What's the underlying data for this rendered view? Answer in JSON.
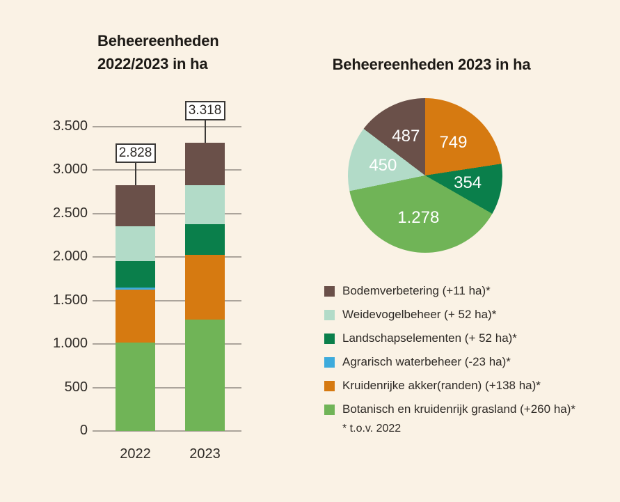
{
  "background_color": "#faf2e5",
  "accent_text_color": "#1d1a16",
  "grid_color": "#aba49b",
  "chart_data": [
    {
      "type": "bar",
      "subtype": "stacked-column",
      "title_lines": [
        "Beheereenheden",
        "2022/2023 in ha"
      ],
      "categories": [
        "2022",
        "2023"
      ],
      "series": [
        {
          "name": "Botanisch en kruidenrijk grasland",
          "color": "#70b457",
          "values": [
            1018,
            1278
          ]
        },
        {
          "name": "Kruidenrijke akker(randen)",
          "color": "#d67a11",
          "values": [
            611,
            749
          ]
        },
        {
          "name": "Agrarisch waterbeheer",
          "color": "#3dabdc",
          "values": [
            23,
            0
          ]
        },
        {
          "name": "Landschapselementen",
          "color": "#0a7f4b",
          "values": [
            302,
            354
          ]
        },
        {
          "name": "Weidevogelbeheer",
          "color": "#b2dbc8",
          "values": [
            398,
            450
          ]
        },
        {
          "name": "Bodemverbetering",
          "color": "#6a5049",
          "values": [
            476,
            487
          ]
        }
      ],
      "totals": [
        2828,
        3318
      ],
      "total_labels": [
        "2.828",
        "3.318"
      ],
      "ylim": [
        0,
        3500
      ],
      "ytick_step": 500,
      "ytick_labels": [
        "0",
        "500",
        "1.000",
        "1.500",
        "2.000",
        "2.500",
        "3.000",
        "3.500"
      ],
      "grid": true
    },
    {
      "type": "pie",
      "title": "Beheereenheden 2023 in ha",
      "start_angle_deg": 0,
      "direction": "clockwise",
      "slices": [
        {
          "name": "Kruidenrijke akker(randen)",
          "value": 749,
          "label": "749",
          "color": "#d67a11"
        },
        {
          "name": "Landschapselementen",
          "value": 354,
          "label": "354",
          "color": "#0a7f4b"
        },
        {
          "name": "Botanisch en kruidenrijk grasland",
          "value": 1278,
          "label": "1.278",
          "color": "#70b457"
        },
        {
          "name": "Weidevogelbeheer",
          "value": 450,
          "label": "450",
          "color": "#b2dbc8"
        },
        {
          "name": "Bodemverbetering",
          "value": 487,
          "label": "487",
          "color": "#6a5049"
        }
      ]
    }
  ],
  "legend": {
    "items": [
      {
        "label": "Bodemverbetering (+11 ha)*",
        "color": "#6a5049"
      },
      {
        "label": "Weidevogelbeheer (+ 52 ha)*",
        "color": "#b2dbc8"
      },
      {
        "label": "Landschapselementen (+ 52 ha)*",
        "color": "#0a7f4b"
      },
      {
        "label": "Agrarisch waterbeheer (-23 ha)*",
        "color": "#3dabdc"
      },
      {
        "label": "Kruidenrijke akker(randen) (+138 ha)*",
        "color": "#d67a11"
      },
      {
        "label": "Botanisch en kruidenrijk grasland (+260 ha)*",
        "color": "#70b457"
      }
    ],
    "footnote": "* t.o.v. 2022"
  }
}
